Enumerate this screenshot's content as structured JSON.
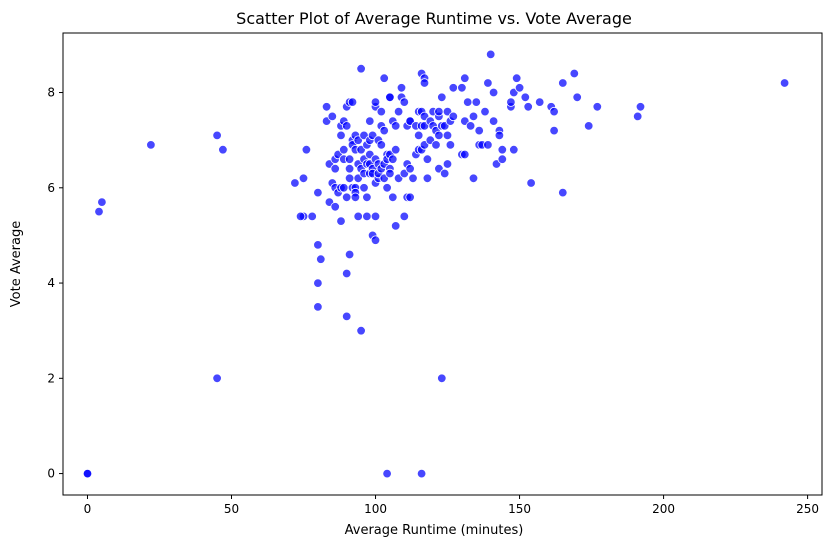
{
  "chart_data": {
    "type": "scatter",
    "title": "Scatter Plot of Average Runtime vs. Vote Average",
    "xlabel": "Average Runtime (minutes)",
    "ylabel": "Vote Average",
    "xlim": [
      -8.5,
      255
    ],
    "ylim": [
      -0.45,
      9.25
    ],
    "xticks": [
      0,
      50,
      100,
      150,
      200,
      250
    ],
    "yticks": [
      0,
      2,
      4,
      6,
      8
    ],
    "grid": false,
    "legend": "none",
    "marker_color": "#0000ff",
    "points": [
      [
        0,
        0
      ],
      [
        0,
        0
      ],
      [
        4,
        5.5
      ],
      [
        5,
        5.7
      ],
      [
        22,
        6.9
      ],
      [
        45,
        7.1
      ],
      [
        45,
        2.0
      ],
      [
        47,
        6.8
      ],
      [
        72,
        6.1
      ],
      [
        75,
        6.2
      ],
      [
        75,
        5.4
      ],
      [
        76,
        6.8
      ],
      [
        78,
        5.4
      ],
      [
        80,
        5.9
      ],
      [
        80,
        4.8
      ],
      [
        80,
        4.0
      ],
      [
        80,
        3.5
      ],
      [
        81,
        4.5
      ],
      [
        83,
        7.4
      ],
      [
        83,
        7.7
      ],
      [
        84,
        6.5
      ],
      [
        84,
        5.7
      ],
      [
        85,
        6.1
      ],
      [
        85,
        7.5
      ],
      [
        86,
        6.0
      ],
      [
        86,
        6.6
      ],
      [
        86,
        5.6
      ],
      [
        87,
        5.9
      ],
      [
        87,
        6.7
      ],
      [
        88,
        6.0
      ],
      [
        88,
        7.1
      ],
      [
        88,
        7.3
      ],
      [
        88,
        5.3
      ],
      [
        89,
        6.6
      ],
      [
        89,
        7.4
      ],
      [
        89,
        6.8
      ],
      [
        89,
        6.0
      ],
      [
        90,
        7.7
      ],
      [
        90,
        7.3
      ],
      [
        90,
        5.8
      ],
      [
        90,
        4.2
      ],
      [
        90,
        3.3
      ],
      [
        91,
        6.2
      ],
      [
        91,
        4.6
      ],
      [
        91,
        7.8
      ],
      [
        91,
        6.6
      ],
      [
        91,
        6.4
      ],
      [
        92,
        6.0
      ],
      [
        92,
        7.0
      ],
      [
        92,
        7.8
      ],
      [
        92,
        6.9
      ],
      [
        93,
        6.0
      ],
      [
        93,
        6.8
      ],
      [
        93,
        7.1
      ],
      [
        93,
        5.9
      ],
      [
        93,
        5.8
      ],
      [
        94,
        5.4
      ],
      [
        94,
        6.2
      ],
      [
        94,
        6.5
      ],
      [
        94,
        7.0
      ],
      [
        95,
        8.5
      ],
      [
        95,
        3.0
      ],
      [
        95,
        6.4
      ],
      [
        95,
        6.8
      ],
      [
        96,
        6.6
      ],
      [
        96,
        7.1
      ],
      [
        96,
        6.3
      ],
      [
        96,
        6.0
      ],
      [
        97,
        6.5
      ],
      [
        97,
        6.9
      ],
      [
        97,
        5.4
      ],
      [
        97,
        5.8
      ],
      [
        98,
        6.3
      ],
      [
        98,
        6.5
      ],
      [
        98,
        7.4
      ],
      [
        98,
        7.0
      ],
      [
        98,
        6.7
      ],
      [
        99,
        5.0
      ],
      [
        99,
        6.4
      ],
      [
        99,
        7.1
      ],
      [
        99,
        6.3
      ],
      [
        100,
        7.7
      ],
      [
        100,
        7.8
      ],
      [
        100,
        6.6
      ],
      [
        100,
        4.9
      ],
      [
        100,
        5.4
      ],
      [
        100,
        6.1
      ],
      [
        101,
        6.5
      ],
      [
        101,
        7.0
      ],
      [
        101,
        6.2
      ],
      [
        101,
        6.3
      ],
      [
        102,
        7.6
      ],
      [
        102,
        7.3
      ],
      [
        102,
        6.9
      ],
      [
        102,
        6.4
      ],
      [
        103,
        8.3
      ],
      [
        103,
        7.2
      ],
      [
        103,
        6.5
      ],
      [
        103,
        6.2
      ],
      [
        104,
        6.7
      ],
      [
        104,
        6.6
      ],
      [
        104,
        6.0
      ],
      [
        105,
        7.9
      ],
      [
        105,
        7.9
      ],
      [
        105,
        6.7
      ],
      [
        105,
        6.4
      ],
      [
        105,
        6.3
      ],
      [
        106,
        7.4
      ],
      [
        106,
        6.6
      ],
      [
        106,
        5.8
      ],
      [
        107,
        7.3
      ],
      [
        107,
        6.8
      ],
      [
        107,
        5.2
      ],
      [
        108,
        7.6
      ],
      [
        108,
        6.2
      ],
      [
        109,
        8.1
      ],
      [
        109,
        7.9
      ],
      [
        110,
        7.8
      ],
      [
        110,
        5.4
      ],
      [
        110,
        6.3
      ],
      [
        111,
        7.3
      ],
      [
        111,
        6.5
      ],
      [
        111,
        5.8
      ],
      [
        112,
        7.4
      ],
      [
        112,
        7.4
      ],
      [
        112,
        6.4
      ],
      [
        112,
        5.8
      ],
      [
        113,
        6.2
      ],
      [
        114,
        7.3
      ],
      [
        114,
        6.7
      ],
      [
        115,
        7.6
      ],
      [
        115,
        7.1
      ],
      [
        115,
        6.8
      ],
      [
        116,
        8.4
      ],
      [
        116,
        7.6
      ],
      [
        116,
        7.3
      ],
      [
        116,
        6.8
      ],
      [
        116,
        0.0
      ],
      [
        117,
        8.3
      ],
      [
        117,
        8.2
      ],
      [
        117,
        7.5
      ],
      [
        117,
        7.3
      ],
      [
        117,
        6.9
      ],
      [
        118,
        6.6
      ],
      [
        118,
        6.2
      ],
      [
        119,
        7.4
      ],
      [
        119,
        7.0
      ],
      [
        120,
        7.6
      ],
      [
        120,
        7.3
      ],
      [
        121,
        7.2
      ],
      [
        121,
        6.9
      ],
      [
        122,
        7.5
      ],
      [
        122,
        7.1
      ],
      [
        122,
        6.4
      ],
      [
        122,
        7.6
      ],
      [
        123,
        7.9
      ],
      [
        123,
        7.3
      ],
      [
        123,
        2.0
      ],
      [
        124,
        7.3
      ],
      [
        124,
        6.3
      ],
      [
        125,
        7.6
      ],
      [
        125,
        7.1
      ],
      [
        125,
        6.5
      ],
      [
        126,
        7.4
      ],
      [
        126,
        6.9
      ],
      [
        127,
        8.1
      ],
      [
        127,
        7.5
      ],
      [
        130,
        8.1
      ],
      [
        130,
        6.7
      ],
      [
        131,
        8.3
      ],
      [
        131,
        7.4
      ],
      [
        131,
        6.7
      ],
      [
        132,
        7.8
      ],
      [
        133,
        7.3
      ],
      [
        134,
        6.2
      ],
      [
        134,
        7.5
      ],
      [
        135,
        7.8
      ],
      [
        136,
        6.9
      ],
      [
        136,
        7.2
      ],
      [
        137,
        6.9
      ],
      [
        138,
        7.6
      ],
      [
        139,
        8.2
      ],
      [
        139,
        6.9
      ],
      [
        140,
        8.8
      ],
      [
        141,
        8.0
      ],
      [
        141,
        7.4
      ],
      [
        142,
        6.5
      ],
      [
        143,
        7.2
      ],
      [
        143,
        7.1
      ],
      [
        144,
        6.8
      ],
      [
        144,
        6.6
      ],
      [
        147,
        7.7
      ],
      [
        147,
        7.8
      ],
      [
        148,
        8.0
      ],
      [
        148,
        6.8
      ],
      [
        149,
        8.3
      ],
      [
        150,
        8.1
      ],
      [
        152,
        7.9
      ],
      [
        153,
        7.7
      ],
      [
        154,
        6.1
      ],
      [
        157,
        7.8
      ],
      [
        161,
        7.7
      ],
      [
        162,
        7.6
      ],
      [
        162,
        7.2
      ],
      [
        165,
        8.2
      ],
      [
        165,
        5.9
      ],
      [
        169,
        8.4
      ],
      [
        170,
        7.9
      ],
      [
        174,
        7.3
      ],
      [
        177,
        7.7
      ],
      [
        191,
        7.5
      ],
      [
        192,
        7.7
      ],
      [
        242,
        8.2
      ],
      [
        104,
        0.0
      ],
      [
        74,
        5.4
      ],
      [
        86,
        6.4
      ]
    ]
  }
}
